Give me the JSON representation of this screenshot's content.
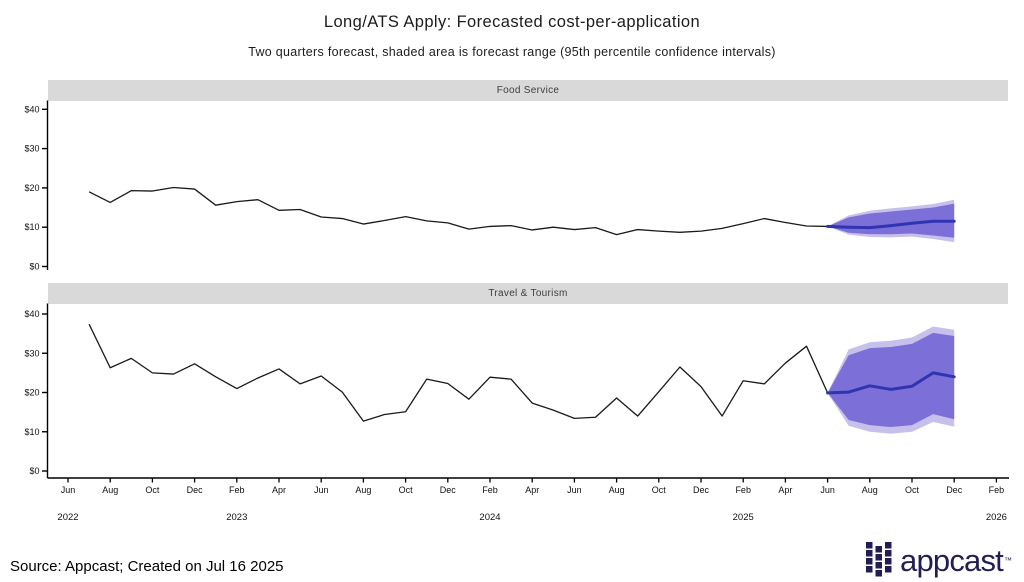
{
  "chart": {
    "title": "Long/ATS Apply: Forecasted cost-per-application",
    "subtitle": "Two quarters forecast, shaded area is forecast range (95th percentile confidence intervals)",
    "panels": [
      {
        "label": "Food Service"
      },
      {
        "label": "Travel & Tourism"
      }
    ]
  },
  "chart_data": [
    {
      "type": "line",
      "title": "Food Service",
      "ylim": [
        0,
        40
      ],
      "yticks": [
        0,
        10,
        20,
        30,
        40
      ],
      "ytick_labels": [
        "$0",
        "$10",
        "$20",
        "$30",
        "$40"
      ],
      "x_start": "Jul 2022",
      "historical": [
        19.0,
        16.3,
        19.3,
        19.2,
        20.1,
        19.7,
        15.6,
        16.5,
        17.0,
        14.3,
        14.5,
        12.6,
        12.2,
        10.8,
        11.7,
        12.7,
        11.6,
        11.1,
        9.5,
        10.2,
        10.4,
        9.3,
        10.0,
        9.4,
        9.9,
        8.1,
        9.4,
        9.0,
        8.7,
        9.0,
        9.7,
        10.9,
        12.2,
        11.2,
        10.3,
        10.2
      ],
      "forecast": {
        "start": "Jun 2025",
        "mid": [
          10.2,
          10.0,
          9.9,
          10.4,
          11.0,
          11.5,
          11.5
        ],
        "inner_hi": [
          10.2,
          12.5,
          13.5,
          14.0,
          14.5,
          15.0,
          16.0
        ],
        "inner_lo": [
          10.2,
          8.6,
          8.2,
          8.2,
          8.4,
          7.9,
          7.3
        ],
        "outer_hi": [
          10.2,
          13.0,
          14.2,
          14.8,
          15.3,
          15.9,
          17.0
        ],
        "outer_lo": [
          10.2,
          8.1,
          7.5,
          7.4,
          7.6,
          7.0,
          6.2
        ]
      }
    },
    {
      "type": "line",
      "title": "Travel & Tourism",
      "ylim": [
        0,
        40
      ],
      "yticks": [
        0,
        10,
        20,
        30,
        40
      ],
      "ytick_labels": [
        "$0",
        "$10",
        "$20",
        "$30",
        "$40"
      ],
      "x_start": "Jul 2022",
      "historical": [
        37.4,
        26.3,
        28.7,
        25.0,
        24.7,
        27.3,
        24.0,
        21.0,
        23.7,
        26.0,
        22.2,
        24.2,
        20.1,
        12.7,
        14.4,
        15.1,
        23.4,
        22.3,
        18.3,
        23.9,
        23.4,
        17.3,
        15.5,
        13.4,
        13.7,
        18.6,
        14.0,
        20.2,
        26.5,
        21.5,
        14.0,
        23.0,
        22.2,
        27.5,
        31.8,
        19.9
      ],
      "forecast": {
        "start": "Jun 2025",
        "mid": [
          19.9,
          20.1,
          21.7,
          20.8,
          21.6,
          25.0,
          24.0
        ],
        "inner_hi": [
          19.9,
          29.5,
          31.3,
          31.6,
          32.4,
          35.2,
          34.4
        ],
        "inner_lo": [
          19.9,
          13.0,
          11.7,
          11.2,
          11.7,
          14.5,
          13.2
        ],
        "outer_hi": [
          19.9,
          31.0,
          32.8,
          33.2,
          34.0,
          36.8,
          36.0
        ],
        "outer_lo": [
          19.9,
          11.5,
          10.0,
          9.5,
          10.0,
          12.5,
          11.3
        ]
      }
    }
  ],
  "x_axis": {
    "month_ticks": [
      "Jun",
      "Aug",
      "Oct",
      "Dec",
      "Feb",
      "Apr",
      "Jun",
      "Aug",
      "Oct",
      "Dec",
      "Feb",
      "Apr",
      "Jun",
      "Aug",
      "Oct",
      "Dec",
      "Feb",
      "Apr",
      "Jun",
      "Aug",
      "Oct",
      "Dec",
      "Feb"
    ],
    "year_ticks": [
      {
        "label": "2022",
        "month": 0
      },
      {
        "label": "2023",
        "month": 8
      },
      {
        "label": "2024",
        "month": 20
      },
      {
        "label": "2025",
        "month": 32
      },
      {
        "label": "2026",
        "month": 44
      }
    ]
  },
  "footer": {
    "source": "Source: Appcast; Created on Jul 16 2025"
  },
  "logo": {
    "text": "appcast",
    "trademark": "™"
  },
  "colors": {
    "historical_line": "#1a1a1a",
    "forecast_line": "#3034b2",
    "inner_band": "#7c70d8",
    "outer_band": "#c7c0ed",
    "strip_bg": "#d9d9d9",
    "logo_navy": "#221d54"
  }
}
